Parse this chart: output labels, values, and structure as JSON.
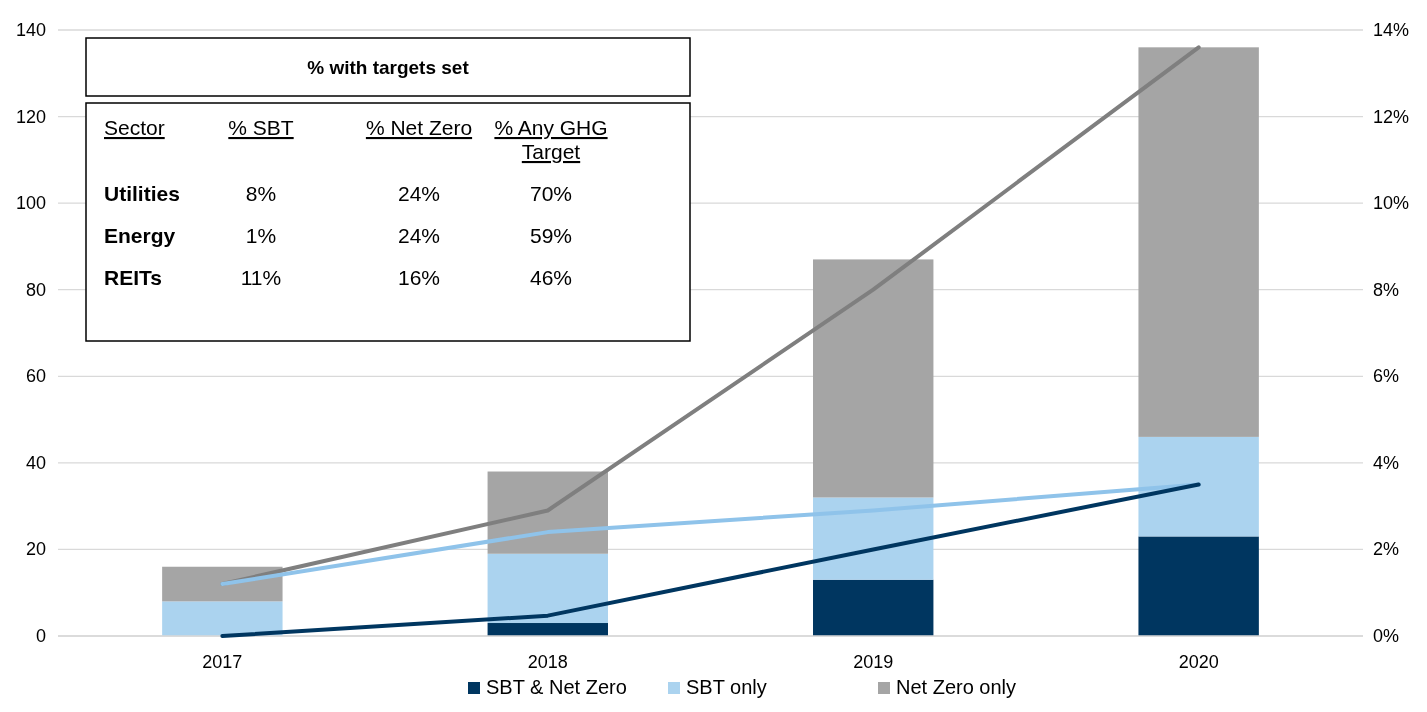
{
  "chart_data": {
    "type": "bar",
    "stacked": true,
    "title": "% with targets set",
    "categories": [
      "2017",
      "2018",
      "2019",
      "2020"
    ],
    "series": [
      {
        "name": "SBT & Net Zero",
        "color": "#003660",
        "values": [
          0,
          3,
          13,
          23
        ]
      },
      {
        "name": "SBT  only",
        "color": "#abd3ef",
        "values": [
          8,
          16,
          19,
          23
        ]
      },
      {
        "name": "Net Zero only",
        "color": "#a5a5a5",
        "values": [
          8,
          19,
          55,
          90
        ]
      },
      {
        "type": "line",
        "axis": "y2",
        "color": "#7f7f7f",
        "values": [
          1.2,
          2.9,
          8.0,
          13.6
        ]
      },
      {
        "type": "line",
        "axis": "y2",
        "color": "#8fc3ea",
        "values": [
          1.2,
          2.4,
          2.9,
          3.5
        ]
      },
      {
        "type": "line",
        "axis": "y2",
        "color": "#003660",
        "values": [
          0,
          0.47,
          2.0,
          3.5
        ]
      }
    ],
    "ylim": [
      0,
      140
    ],
    "yticks": [
      0,
      20,
      40,
      60,
      80,
      100,
      120,
      140
    ],
    "y2lim": [
      0,
      14
    ],
    "y2ticks": [
      {
        "value": 0,
        "label": "0%"
      },
      {
        "value": 2,
        "label": "2%"
      },
      {
        "value": 4,
        "label": "4%"
      },
      {
        "value": 6,
        "label": "6%"
      },
      {
        "value": 8,
        "label": "8%"
      },
      {
        "value": 10,
        "label": "10%"
      },
      {
        "value": 12,
        "label": "12%"
      },
      {
        "value": 14,
        "label": "14%"
      }
    ],
    "grid": "y",
    "legend": "bottom",
    "marker": "none",
    "line_style": "solid",
    "annotations": [
      "Sector",
      "% SBT",
      "% Net Zero",
      "% Any GHG Target",
      "Utilities",
      "8%",
      "24%",
      "70%",
      "Energy",
      "1%",
      "24%",
      "59%",
      "REITs",
      "11%",
      "16%",
      "46%"
    ]
  }
}
